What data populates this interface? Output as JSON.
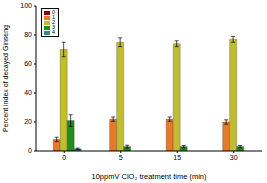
{
  "chart_data": {
    "type": "bar",
    "categories": [
      "0",
      "5",
      "15",
      "30"
    ],
    "x_label": "10ppmV ClO₂ treatment time (min)",
    "y_label": "Percent index of decayed Ginseng",
    "ylim": [
      0,
      100
    ],
    "yticks": [
      0,
      20,
      40,
      60,
      80,
      100
    ],
    "grid": false,
    "legend": "top-left",
    "series": [
      {
        "name": "0",
        "color": "#8b0000",
        "values": [
          0,
          0,
          0,
          0
        ],
        "errors": [
          0,
          0,
          0,
          0
        ]
      },
      {
        "name": "1",
        "color": "#e8782a",
        "values": [
          8,
          22,
          22,
          20
        ],
        "errors": [
          1.5,
          1.5,
          1.5,
          1.5
        ]
      },
      {
        "name": "2",
        "color": "#c2bd2e",
        "values": [
          70,
          75,
          74,
          77
        ],
        "errors": [
          5,
          3,
          2,
          2
        ]
      },
      {
        "name": "3",
        "color": "#238b23",
        "values": [
          21,
          3,
          3,
          3
        ],
        "errors": [
          4,
          1,
          0.8,
          0.8
        ]
      },
      {
        "name": "4",
        "color": "#2e8b8b",
        "values": [
          1.5,
          0,
          0,
          0
        ],
        "errors": [
          0.5,
          0,
          0,
          0
        ]
      }
    ]
  }
}
